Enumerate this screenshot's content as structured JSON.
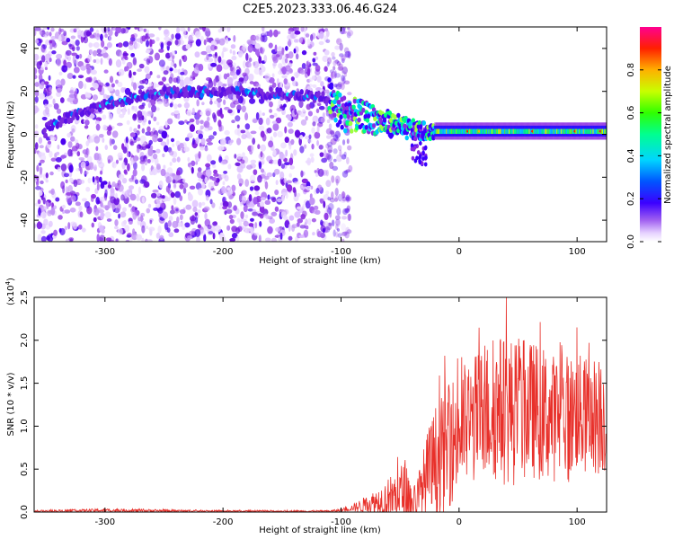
{
  "title": "C2E5.2023.333.06.46.G24",
  "colors": {
    "snr_line": "#e8302a",
    "noise_purple": "#7a1fe0",
    "colormap": [
      "#ffffff",
      "#d9b8ff",
      "#8a2be2",
      "#3b00ff",
      "#0070ff",
      "#00e5ff",
      "#00ff80",
      "#a0ff00",
      "#ffe000",
      "#ff6000",
      "#ff0000",
      "#ff0088"
    ]
  },
  "chart_data": [
    {
      "type": "heatmap",
      "name": "spectrogram",
      "xlabel": "Height of straight line (km)",
      "ylabel": "Frequency (Hz)",
      "xlim": [
        -360,
        125
      ],
      "ylim": [
        -50,
        50
      ],
      "xticks": [
        "-300",
        "-200",
        "-100",
        "0",
        "100"
      ],
      "xtick_values": [
        -300,
        -200,
        -100,
        0,
        100
      ],
      "yticks": [
        "-40",
        "-20",
        "0",
        "20",
        "40"
      ],
      "ytick_values": [
        -40,
        -20,
        0,
        20,
        40
      ],
      "colorbar": {
        "label": "Normalized spectral amplitude",
        "range": [
          0,
          1
        ],
        "ticks": [
          "0.0",
          "0.2",
          "0.4",
          "0.6",
          "0.8"
        ],
        "tick_values": [
          0.0,
          0.2,
          0.4,
          0.6,
          0.8
        ]
      },
      "signal_track": [
        {
          "x": -350,
          "freq": 3
        },
        {
          "x": -330,
          "freq": 8
        },
        {
          "x": -300,
          "freq": 14
        },
        {
          "x": -270,
          "freq": 18
        },
        {
          "x": -240,
          "freq": 20
        },
        {
          "x": -200,
          "freq": 20
        },
        {
          "x": -160,
          "freq": 19
        },
        {
          "x": -130,
          "freq": 18
        },
        {
          "x": -110,
          "freq": 17
        },
        {
          "x": -100,
          "freq": 10
        },
        {
          "x": -80,
          "freq": 8
        },
        {
          "x": -60,
          "freq": 5
        },
        {
          "x": -40,
          "freq": 2
        },
        {
          "x": -20,
          "freq": 1
        },
        {
          "x": 0,
          "freq": 1
        },
        {
          "x": 50,
          "freq": 1
        },
        {
          "x": 100,
          "freq": 1
        },
        {
          "x": 125,
          "freq": 1
        }
      ],
      "noise_region_x": [
        -360,
        -100
      ]
    },
    {
      "type": "line",
      "name": "snr",
      "xlabel": "Height of straight line (km)",
      "ylabel": "SNR (10 * v/v)",
      "y_scale_label": "(x10",
      "y_scale_exp": "4",
      "y_scale_close": ")",
      "xlim": [
        -360,
        125
      ],
      "ylim": [
        0,
        2.5
      ],
      "xticks": [
        "-300",
        "-200",
        "-100",
        "0",
        "100"
      ],
      "xtick_values": [
        -300,
        -200,
        -100,
        0,
        100
      ],
      "yticks": [
        "0.0",
        "0.5",
        "1.0",
        "1.5",
        "2.0",
        "2.5"
      ],
      "ytick_values": [
        0.0,
        0.5,
        1.0,
        1.5,
        2.0,
        2.5
      ],
      "envelope": {
        "x": [
          -360,
          -300,
          -200,
          -110,
          -100,
          -90,
          -80,
          -70,
          -60,
          -50,
          -45,
          -40,
          -35,
          -30,
          -25,
          -20,
          -15,
          -10,
          -5,
          0,
          10,
          20,
          30,
          40,
          50,
          60,
          70,
          80,
          90,
          100,
          110,
          120,
          125
        ],
        "baseline": [
          0.01,
          0.02,
          0.01,
          0.01,
          0.02,
          0.05,
          0.08,
          0.12,
          0.15,
          0.2,
          0.25,
          0.1,
          0.15,
          0.3,
          0.45,
          0.55,
          0.65,
          0.75,
          0.85,
          0.95,
          1.05,
          1.15,
          1.2,
          1.2,
          1.15,
          1.2,
          1.15,
          1.1,
          1.1,
          1.15,
          1.1,
          1.15,
          1.1
        ],
        "amplitude": [
          0.01,
          0.02,
          0.01,
          0.01,
          0.02,
          0.04,
          0.1,
          0.15,
          0.25,
          0.35,
          0.4,
          0.2,
          0.3,
          0.45,
          0.6,
          0.7,
          0.7,
          0.7,
          0.75,
          0.75,
          0.75,
          0.8,
          0.85,
          0.9,
          0.85,
          0.8,
          0.8,
          0.75,
          0.75,
          0.7,
          0.7,
          0.7,
          0.7
        ]
      },
      "peaks": [
        {
          "x": -12,
          "y": 1.82
        },
        {
          "x": 5,
          "y": 1.6
        },
        {
          "x": 40,
          "y": 2.5
        },
        {
          "x": 55,
          "y": 2.0
        },
        {
          "x": 100,
          "y": 2.15
        },
        {
          "x": 118,
          "y": 2.2
        },
        {
          "x": 93,
          "y": 0.35
        },
        {
          "x": 118,
          "y": 0.45
        }
      ]
    }
  ]
}
